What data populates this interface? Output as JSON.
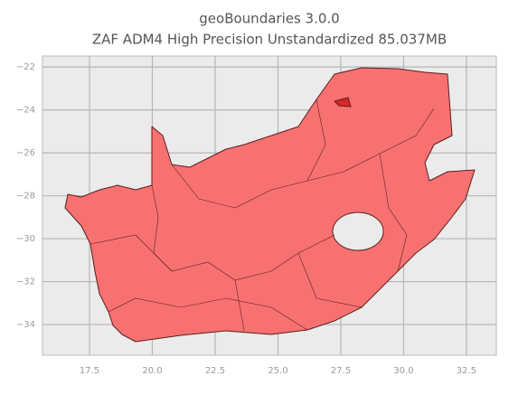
{
  "chart_data": {
    "type": "map",
    "title": "geoBoundaries 3.0.0",
    "subtitle": "ZAF ADM4 High Precision Unstandardized 85.037MB",
    "xlim": [
      15.63,
      33.69
    ],
    "ylim": [
      -35.43,
      -21.49
    ],
    "xticks": [
      17.5,
      {
        "value": 20,
        "label": "20.0"
      },
      22.5,
      {
        "value": 25,
        "label": "25.0"
      },
      27.5,
      {
        "value": 30,
        "label": "30.0"
      },
      32.5
    ],
    "yticks": [
      {
        "value": -22,
        "label": "−22"
      },
      {
        "value": -24,
        "label": "−24"
      },
      {
        "value": -26,
        "label": "−26"
      },
      {
        "value": -28,
        "label": "−28"
      },
      {
        "value": -30,
        "label": "−30"
      },
      {
        "value": -32,
        "label": "−32"
      },
      {
        "value": -34,
        "label": "−34"
      }
    ],
    "grid": true,
    "color": "#f87171"
  }
}
